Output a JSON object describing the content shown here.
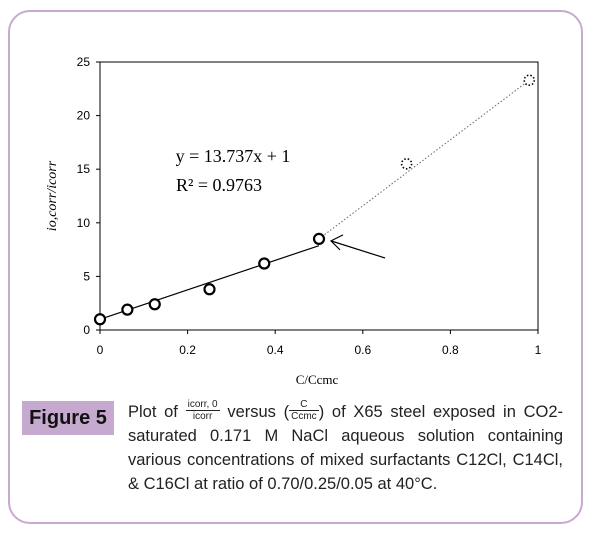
{
  "figure": {
    "label": "Figure 5",
    "caption": {
      "prefix": "Plot of",
      "frac1_num": "icorr, 0",
      "frac1_den": "icorr",
      "versus": "versus",
      "open_paren": "(",
      "frac2_num": "C",
      "frac2_den": "Ccmc",
      "close_paren": ")",
      "rest": "of X65 steel exposed in CO2-saturated 0.171 M NaCl aqueous solution containing various concentrations of mixed surfactants C12Cl, C14Cl, & C16Cl at ratio of 0.70/0.25/0.05 at 40°C."
    }
  },
  "chart_data": {
    "type": "scatter",
    "xlabel": "C/Ccmc",
    "ylabel": "io,corr/icorr",
    "xlim": [
      0,
      1
    ],
    "ylim": [
      0,
      25
    ],
    "x_ticks": [
      "0",
      "0.2",
      "0.4",
      "0.6",
      "0.8",
      "1"
    ],
    "y_ticks": [
      "0",
      "5",
      "10",
      "15",
      "20",
      "25"
    ],
    "grid": false,
    "series": [
      {
        "marker": "open-circle-solid",
        "x": [
          0,
          0.0625,
          0.125,
          0.25,
          0.375,
          0.5
        ],
        "y": [
          1.0,
          1.9,
          2.4,
          3.8,
          6.2,
          8.5
        ]
      },
      {
        "marker": "open-circle-dotted",
        "x": [
          0.7,
          0.98
        ],
        "y": [
          15.5,
          23.3
        ]
      }
    ],
    "fit_line": {
      "x": [
        0,
        0.5
      ],
      "y": [
        1,
        7.87
      ],
      "style": "solid"
    },
    "extrapolation_line": {
      "x": [
        0.5,
        0.98
      ],
      "y": [
        8.5,
        23.3
      ],
      "style": "dotted"
    },
    "annotation": {
      "equation": "y = 13.737x + 1",
      "r_squared": "R² = 0.9763"
    },
    "arrow": {
      "points_to": {
        "x": 0.5,
        "y": 8.5
      }
    }
  }
}
